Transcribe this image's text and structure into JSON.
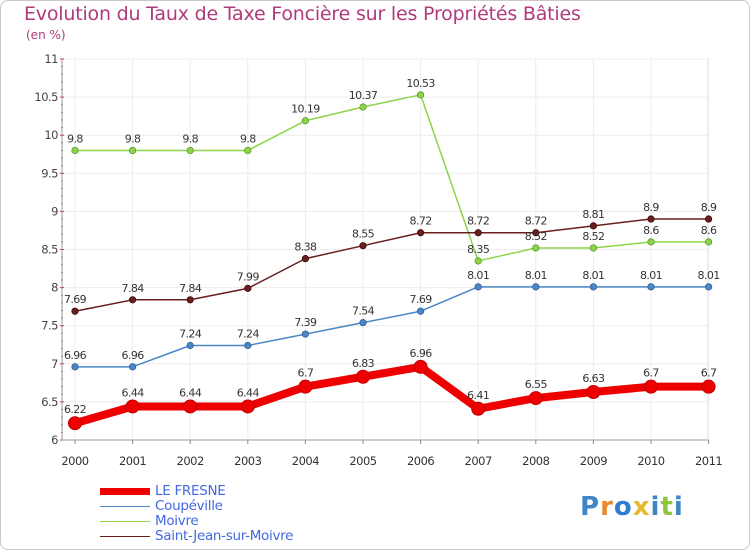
{
  "chart_data": {
    "type": "line",
    "title": "Evolution du Taux de Taxe Foncière sur les Propriétés Bâties",
    "subtitle": "(en %)",
    "x": [
      "2000",
      "2001",
      "2002",
      "2003",
      "2004",
      "2005",
      "2006",
      "2007",
      "2008",
      "2009",
      "2010",
      "2011"
    ],
    "ylim": [
      6,
      11
    ],
    "yticks": [
      "6",
      "6.5",
      "7",
      "7.5",
      "8",
      "8.5",
      "9",
      "9.5",
      "10",
      "10.5",
      "11"
    ],
    "grid": true,
    "legend_position": "bottom-left",
    "series": [
      {
        "name": "LE FRESNE",
        "color": "#ee0000",
        "values": [
          6.22,
          6.44,
          6.44,
          6.44,
          6.7,
          6.83,
          6.96,
          6.41,
          6.55,
          6.63,
          6.7,
          6.7
        ]
      },
      {
        "name": "Coupéville",
        "color": "#4a86c8",
        "values": [
          6.96,
          6.96,
          7.24,
          7.24,
          7.39,
          7.54,
          7.69,
          8.01,
          8.01,
          8.01,
          8.01,
          8.01
        ]
      },
      {
        "name": "Moivre",
        "color": "#8ed44a",
        "values": [
          9.8,
          9.8,
          9.8,
          9.8,
          10.19,
          10.37,
          10.53,
          8.35,
          8.52,
          8.52,
          8.6,
          8.6
        ]
      },
      {
        "name": "Saint-Jean-sur-Moivre",
        "color": "#6b1e1e",
        "values": [
          7.69,
          7.84,
          7.84,
          7.99,
          8.38,
          8.55,
          8.72,
          8.72,
          8.72,
          8.81,
          8.9,
          8.9
        ]
      }
    ]
  },
  "legend": {
    "items": [
      {
        "label": "LE FRESNE",
        "color": "#ee0000",
        "text_color": "#4169e1"
      },
      {
        "label": "Coupéville",
        "color": "#4a86c8",
        "text_color": "#4169e1"
      },
      {
        "label": "Moivre",
        "color": "#8ed44a",
        "text_color": "#4169e1"
      },
      {
        "label": "Saint-Jean-sur-Moivre",
        "color": "#6b1e1e",
        "text_color": "#4169e1"
      }
    ]
  },
  "logo": {
    "letters": [
      "P",
      "r",
      "o",
      "x",
      "i",
      "t",
      "i"
    ],
    "colors": [
      "#3e86c6",
      "#e8892f",
      "#2e7dd0",
      "#e8b82f",
      "#3e86c6",
      "#8cc63f",
      "#3e86c6"
    ]
  }
}
